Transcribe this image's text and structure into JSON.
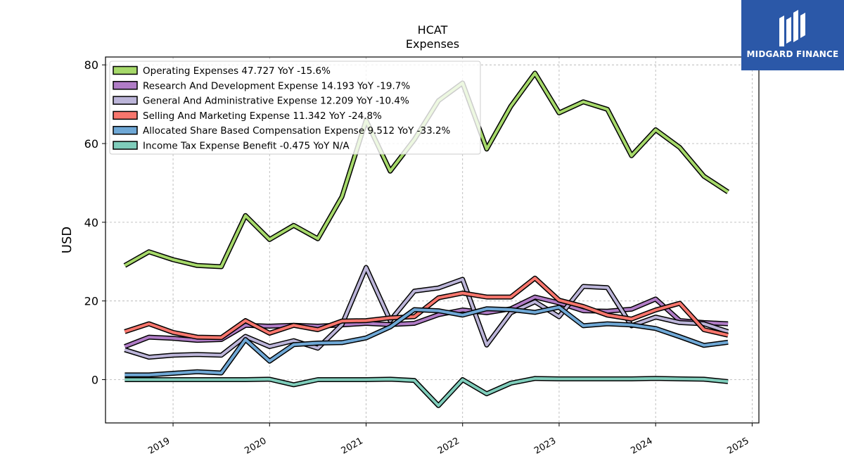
{
  "title": "HCAT",
  "subtitle": "Expenses",
  "logo": {
    "text": "MIDGARD FINANCE",
    "bg": "#2b58a8"
  },
  "chart_data": {
    "type": "line",
    "ylabel": "USD",
    "xlabel": "",
    "ylim": [
      -11,
      82
    ],
    "xlim": [
      2018.3,
      2025.07
    ],
    "yticks": [
      0,
      20,
      40,
      60,
      80
    ],
    "xticks": [
      "2019",
      "2020",
      "2021",
      "2022",
      "2023",
      "2024",
      "2025"
    ],
    "grid": true,
    "legend_position": "top-left",
    "x": [
      2018.5,
      2018.75,
      2019.0,
      2019.25,
      2019.5,
      2019.75,
      2020.0,
      2020.25,
      2020.5,
      2020.75,
      2021.0,
      2021.25,
      2021.5,
      2021.75,
      2022.0,
      2022.25,
      2022.5,
      2022.75,
      2023.0,
      2023.25,
      2023.5,
      2023.75,
      2024.0,
      2024.25,
      2024.5,
      2024.75
    ],
    "series": [
      {
        "name": "Operating Expenses",
        "legend": "Operating Expenses  47.727 YoY -15.6%",
        "color": "#a6d96a",
        "values": [
          29.0,
          32.5,
          30.5,
          29.0,
          28.7,
          41.7,
          35.6,
          39.2,
          35.8,
          46.5,
          65.9,
          53.0,
          61.0,
          70.9,
          75.4,
          58.6,
          69.5,
          77.9,
          67.8,
          70.6,
          68.7,
          56.9,
          63.5,
          59.0,
          51.7,
          47.7
        ]
      },
      {
        "name": "Research And Development Expense",
        "legend": "Research And Development Expense  14.193 YoY -19.7%",
        "color": "#b07cc6",
        "values": [
          8.4,
          10.8,
          10.5,
          10.0,
          10.2,
          13.8,
          13.6,
          13.8,
          13.6,
          13.9,
          14.3,
          14.0,
          14.3,
          16.5,
          17.7,
          17.0,
          18.0,
          21.0,
          19.5,
          17.5,
          17.4,
          17.9,
          20.5,
          15.0,
          14.5,
          14.2
        ]
      },
      {
        "name": "General And Administrative Expense",
        "legend": "General And Administrative Expense  12.209 YoY -10.4%",
        "color": "#bcb5d9",
        "values": [
          7.6,
          5.7,
          6.2,
          6.4,
          6.2,
          11.0,
          8.4,
          9.9,
          8.0,
          14.0,
          28.5,
          15.0,
          22.5,
          23.3,
          25.5,
          8.8,
          17.0,
          19.8,
          16.0,
          23.7,
          23.4,
          13.7,
          15.9,
          14.5,
          14.2,
          12.2
        ]
      },
      {
        "name": "Selling And Marketing Expense",
        "legend": "Selling And Marketing Expense  11.342 YoY -24.8%",
        "color": "#f8766d",
        "values": [
          12.2,
          14.2,
          12.0,
          10.8,
          10.7,
          15.0,
          11.8,
          13.8,
          12.7,
          14.9,
          15.0,
          15.7,
          16.0,
          20.8,
          22.0,
          21.0,
          21.0,
          25.8,
          20.2,
          18.6,
          16.4,
          15.4,
          17.7,
          19.4,
          12.7,
          11.3
        ]
      },
      {
        "name": "Allocated Share Based Compensation Expense",
        "legend": "Allocated Share Based Compensation Expense  9.512 YoY -33.2%",
        "color": "#6fa8d6",
        "values": [
          1.2,
          1.2,
          1.6,
          2.0,
          1.7,
          10.2,
          4.7,
          8.9,
          9.3,
          9.4,
          10.6,
          13.4,
          17.8,
          17.5,
          16.4,
          18.0,
          17.8,
          17.1,
          18.4,
          13.7,
          14.2,
          13.9,
          13.0,
          10.9,
          8.7,
          9.5
        ]
      },
      {
        "name": "Income Tax Expense Benefit",
        "legend": "Income Tax Expense Benefit  -0.475 YoY N/A",
        "color": "#7fcdbb",
        "values": [
          0.0,
          0.0,
          0.0,
          0.0,
          0.0,
          0.0,
          0.1,
          -1.3,
          0.0,
          0.0,
          0.0,
          0.1,
          -0.2,
          -6.6,
          0.0,
          -3.6,
          -0.9,
          0.3,
          0.2,
          0.2,
          0.2,
          0.2,
          0.3,
          0.2,
          0.1,
          -0.5
        ]
      }
    ]
  }
}
